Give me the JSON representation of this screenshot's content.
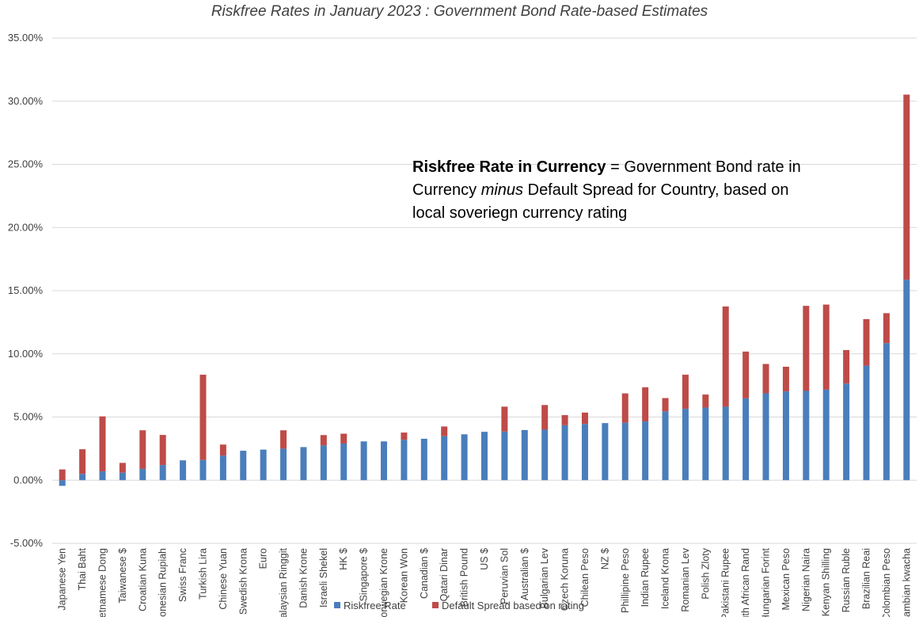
{
  "chart_data": {
    "type": "bar",
    "stacked": true,
    "title": "Riskfree Rates in January 2023 : Government Bond Rate-based Estimates",
    "ylim": [
      -0.05,
      0.35
    ],
    "yticks": [
      -0.05,
      0,
      0.05,
      0.1,
      0.15,
      0.2,
      0.25,
      0.3,
      0.35
    ],
    "ytick_labels": [
      "-5.00%",
      "0.00%",
      "5.00%",
      "10.00%",
      "15.00%",
      "20.00%",
      "25.00%",
      "30.00%",
      "35.00%"
    ],
    "grid": true,
    "legend_position": "bottom",
    "categories": [
      "Japanese Yen",
      "Thai Baht",
      "Vietnamese Dong",
      "Taiwanese $",
      "Croatian Kuna",
      "Indonesian Rupiah",
      "Swiss Franc",
      "Turkish Lira",
      "Chinese Yuan",
      "Swedish Krona",
      "Euro",
      "Malaysian Ringgit",
      "Danish Krone",
      "Israeli Shekel",
      "HK $",
      "Singapore $",
      "Norwegian Krone",
      "Korean Won",
      "Canadian $",
      "Qatari Dinar",
      "British Pound",
      "US $",
      "Peruvian Sol",
      "Australian $",
      "Bulgarian Lev",
      "Czech Koruna",
      "Chilean Peso",
      "NZ $",
      "Phillipine Peso",
      "Indian Rupee",
      "Iceland Krona",
      "Romanian Lev",
      "Polish Zloty",
      "Pakistani Rupee",
      "South African Rand",
      "Hungarian Forint",
      "Mexican Peso",
      "Nigerian Naira",
      "Kenyan Shilling",
      "Russian Ruble",
      "Brazilian Reai",
      "Colombian Peso",
      "Zambian kwacha"
    ],
    "series": [
      {
        "name": "Riskfree Rate",
        "color": "#4a7ebb",
        "values": [
          -0.0045,
          0.005,
          0.007,
          0.006,
          0.009,
          0.012,
          0.0157,
          0.016,
          0.0195,
          0.0233,
          0.0242,
          0.025,
          0.0262,
          0.0275,
          0.029,
          0.0307,
          0.0307,
          0.032,
          0.0328,
          0.0348,
          0.0363,
          0.0383,
          0.0385,
          0.0397,
          0.04,
          0.0435,
          0.0445,
          0.0452,
          0.0455,
          0.0465,
          0.0545,
          0.0565,
          0.0575,
          0.0582,
          0.0648,
          0.0688,
          0.0703,
          0.0707,
          0.0717,
          0.0765,
          0.0907,
          0.1085,
          0.1587
        ]
      },
      {
        "name": "Default Spread based on rating",
        "color": "#be4b48",
        "values": [
          0.0085,
          0.0195,
          0.0435,
          0.0077,
          0.0305,
          0.0238,
          0.0,
          0.0675,
          0.0087,
          0.0,
          0.0,
          0.0145,
          0.0,
          0.0082,
          0.0078,
          0.0,
          0.0,
          0.0057,
          0.0,
          0.0077,
          0.0,
          0.0,
          0.0197,
          0.0,
          0.0195,
          0.008,
          0.009,
          0.0,
          0.0232,
          0.027,
          0.0105,
          0.027,
          0.0103,
          0.0793,
          0.037,
          0.0232,
          0.0195,
          0.0673,
          0.0673,
          0.0265,
          0.0368,
          0.0237,
          0.1465
        ]
      }
    ]
  },
  "annotation": {
    "bold": "Riskfree Rate in Currency",
    "part1": " = Government Bond rate in Currency ",
    "italic": "minus",
    "part2": " Default Spread for Country, based on local soveriegn currency rating"
  }
}
